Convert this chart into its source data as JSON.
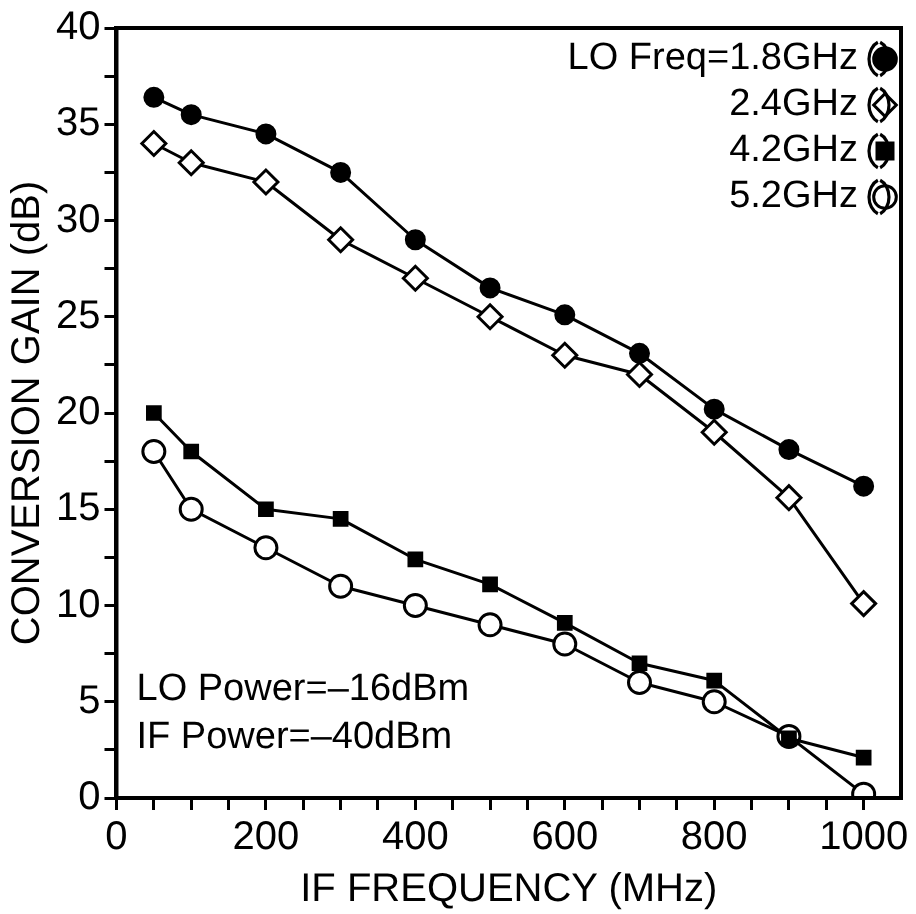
{
  "chart_data": {
    "type": "line",
    "xlabel": "IF FREQUENCY (MHz)",
    "ylabel": "CONVERSION GAIN (dB)",
    "xlim": [
      0,
      1050
    ],
    "ylim": [
      0,
      40
    ],
    "xticks": [
      0,
      {
        "value": 50,
        "label": null
      },
      {
        "value": 100,
        "label": null
      },
      {
        "value": 150,
        "label": null
      },
      200,
      {
        "value": 250,
        "label": null
      },
      {
        "value": 300,
        "label": null
      },
      {
        "value": 350,
        "label": null
      },
      400,
      {
        "value": 450,
        "label": null
      },
      {
        "value": 500,
        "label": null
      },
      {
        "value": 550,
        "label": null
      },
      600,
      {
        "value": 650,
        "label": null
      },
      {
        "value": 700,
        "label": null
      },
      {
        "value": 750,
        "label": null
      },
      800,
      {
        "value": 850,
        "label": null
      },
      {
        "value": 900,
        "label": null
      },
      {
        "value": 950,
        "label": null
      },
      1000
    ],
    "yticks": [
      0,
      {
        "value": 2.5,
        "label": null
      },
      5,
      {
        "value": 7.5,
        "label": null
      },
      10,
      {
        "value": 12.5,
        "label": null
      },
      15,
      {
        "value": 17.5,
        "label": null
      },
      20,
      {
        "value": 22.5,
        "label": null
      },
      25,
      {
        "value": 27.5,
        "label": null
      },
      30,
      {
        "value": 32.5,
        "label": null
      },
      35,
      {
        "value": 37.5,
        "label": null
      },
      40
    ],
    "x": [
      50,
      100,
      200,
      300,
      400,
      500,
      600,
      700,
      800,
      900,
      1000
    ],
    "series": [
      {
        "name": "LO Freq=1.8GHz",
        "color": "#000000",
        "marker": "circle",
        "values": [
          36.4,
          35.5,
          34.5,
          32.5,
          29,
          26.5,
          25.1,
          23.1,
          20.2,
          18.1,
          16.2
        ]
      },
      {
        "name": "2.4GHz",
        "color": "#000000",
        "marker": "diamond",
        "values": [
          34,
          33,
          32,
          29,
          27,
          25,
          23,
          22,
          19,
          15.6,
          10.1
        ]
      },
      {
        "name": "4.2GHz",
        "color": "#000000",
        "marker": "square",
        "values": [
          20,
          18,
          15,
          14.5,
          12.4,
          11.1,
          9.1,
          7,
          6.1,
          3.1,
          2.1
        ]
      },
      {
        "name": "5.2GHz",
        "color": "#000000",
        "marker": "open-circle",
        "values": [
          18,
          15,
          13,
          11,
          10,
          9,
          8,
          6,
          5,
          3.2,
          0.2
        ]
      }
    ],
    "legend": "top right",
    "grid": false,
    "line_style": "solid",
    "annotations": [
      {
        "text": "LO Power=–16dBm"
      },
      {
        "text": "IF Power=–40dBm"
      }
    ]
  }
}
